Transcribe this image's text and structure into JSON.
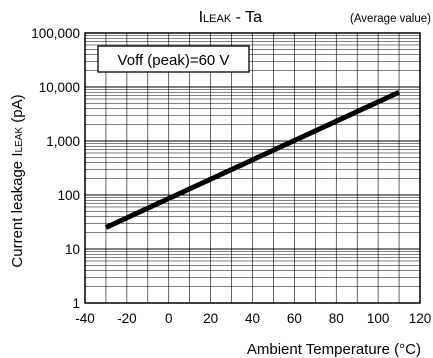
{
  "chart_data": {
    "type": "line",
    "title": "ILEAK - Ta",
    "title_main": "I",
    "title_sub": "LEAK",
    "title_rest": " - Ta",
    "subtitle": "(Average value)",
    "annotation": "Voff (peak)=60 V",
    "xlabel": "Ambient Temperature (°C)",
    "ylabel": "Current leakage ILEAK (pA)",
    "ylabel_main": "Current leakage I",
    "ylabel_sub": "LEAK",
    "ylabel_unit": " (pA)",
    "y_scale": "log",
    "xlim": [
      -40,
      120
    ],
    "ylim": [
      1,
      100000
    ],
    "x_ticks": [
      -40,
      -20,
      0,
      20,
      40,
      60,
      80,
      100,
      120
    ],
    "x_tick_labels": [
      "-40",
      "-20",
      "0",
      "20",
      "40",
      "60",
      "80",
      "100",
      "120"
    ],
    "y_ticks": [
      1,
      10,
      100,
      1000,
      10000,
      100000
    ],
    "y_tick_labels": [
      "1",
      "10",
      "100",
      "1,000",
      "10,000",
      "100,000"
    ],
    "grid": true,
    "series": [
      {
        "x": [
          -30,
          110
        ],
        "y": [
          25,
          8000
        ]
      }
    ]
  }
}
